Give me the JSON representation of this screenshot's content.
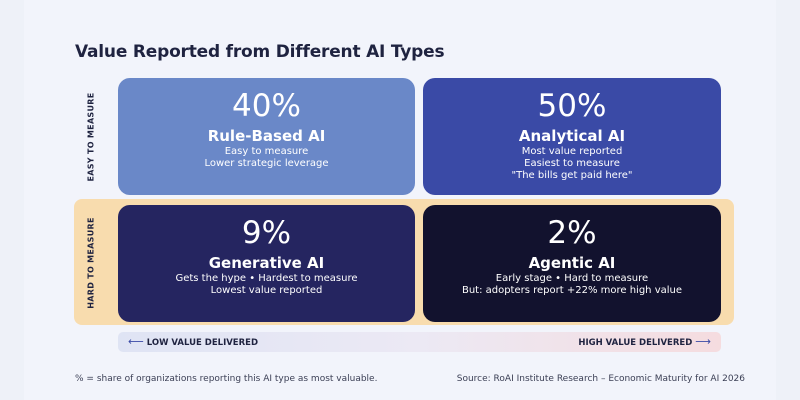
{
  "title": "Value Reported from Different AI Types",
  "axes": {
    "y_top": "EASY TO MEASURE",
    "y_bottom": "HARD TO MEASURE",
    "x_left": "LOW VALUE DELIVERED",
    "x_right": "HIGH VALUE DELIVERED",
    "x_left_arrow": "⟵",
    "x_right_arrow": "⟶"
  },
  "quadrants": [
    {
      "pct": "40%",
      "name": "Rule-Based AI",
      "lines": [
        "Easy to measure",
        "Lower strategic leverage"
      ],
      "color": "#6a88c8"
    },
    {
      "pct": "50%",
      "name": "Analytical AI",
      "lines": [
        "Most value reported",
        "Easiest to measure",
        "\"The bills get paid here\""
      ],
      "color": "#3a4aa6"
    },
    {
      "pct": "9%",
      "name": "Generative AI",
      "lines": [
        "Gets the hype • Hardest to measure",
        "Lowest value reported"
      ],
      "color": "#252560"
    },
    {
      "pct": "2%",
      "name": "Agentic AI",
      "lines": [
        "Early stage • Hard to measure",
        "But: adopters report +22% more high value"
      ],
      "color": "#12122e"
    }
  ],
  "colors": {
    "background": "#eef1f8",
    "hard_band": "#f8dcae",
    "text": "#1f2340"
  },
  "footnote": "% = share of organizations reporting this AI type as most valuable.",
  "source": "Source: RoAI Institute Research – Economic Maturity for AI 2026"
}
